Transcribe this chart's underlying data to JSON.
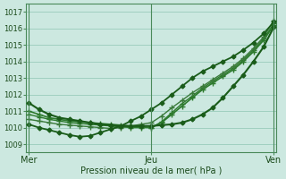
{
  "bg_color": "#cce8e0",
  "grid_color": "#99ccbb",
  "xlabel": "Pression niveau de la mer( hPa )",
  "xtick_labels": [
    "Mer",
    "Jeu",
    "Ven"
  ],
  "xtick_positions": [
    0.0,
    1.0,
    2.0
  ],
  "ylim": [
    1008.5,
    1017.5
  ],
  "xlim": [
    -0.02,
    2.02
  ],
  "ytick_positions": [
    1009,
    1010,
    1011,
    1012,
    1013,
    1014,
    1015,
    1016,
    1017
  ],
  "lines": [
    {
      "x": [
        0.0,
        0.083,
        0.167,
        0.25,
        0.333,
        0.417,
        0.5,
        0.583,
        0.667,
        0.75,
        0.833,
        0.917,
        1.0,
        1.083,
        1.167,
        1.25,
        1.333,
        1.417,
        1.5,
        1.583,
        1.667,
        1.75,
        1.833,
        1.917,
        2.0
      ],
      "y": [
        1011.5,
        1011.1,
        1010.8,
        1010.6,
        1010.5,
        1010.4,
        1010.3,
        1010.2,
        1010.15,
        1010.1,
        1010.1,
        1010.1,
        1010.1,
        1010.15,
        1010.2,
        1010.3,
        1010.5,
        1010.8,
        1011.2,
        1011.8,
        1012.5,
        1013.2,
        1014.0,
        1014.9,
        1016.1
      ],
      "marker": "D",
      "markersize": 2.5,
      "lw": 1.5,
      "color": "#1a5c1a",
      "zorder": 5
    },
    {
      "x": [
        0.0,
        0.083,
        0.167,
        0.25,
        0.333,
        0.417,
        0.5,
        0.583,
        0.667,
        0.75,
        0.833,
        0.917,
        1.0,
        1.083,
        1.167,
        1.25,
        1.333,
        1.417,
        1.5,
        1.583,
        1.667,
        1.75,
        1.833,
        1.917,
        2.0
      ],
      "y": [
        1011.0,
        1010.8,
        1010.6,
        1010.5,
        1010.4,
        1010.35,
        1010.3,
        1010.25,
        1010.2,
        1010.15,
        1010.1,
        1010.05,
        1010.0,
        1010.3,
        1010.8,
        1011.3,
        1011.8,
        1012.3,
        1012.7,
        1013.1,
        1013.5,
        1014.0,
        1014.6,
        1015.3,
        1016.2
      ],
      "marker": "+",
      "markersize": 5,
      "lw": 1.2,
      "color": "#2d7a2d",
      "zorder": 4
    },
    {
      "x": [
        0.0,
        0.083,
        0.167,
        0.25,
        0.333,
        0.417,
        0.5,
        0.583,
        0.667,
        0.75,
        0.833,
        0.917,
        1.0,
        1.083,
        1.167,
        1.25,
        1.333,
        1.417,
        1.5,
        1.583,
        1.667,
        1.75,
        1.833,
        1.917,
        2.0
      ],
      "y": [
        1010.8,
        1010.65,
        1010.5,
        1010.4,
        1010.3,
        1010.25,
        1010.2,
        1010.15,
        1010.1,
        1010.05,
        1010.0,
        1010.0,
        1010.0,
        1010.35,
        1010.9,
        1011.45,
        1011.9,
        1012.4,
        1012.8,
        1013.2,
        1013.6,
        1014.1,
        1014.7,
        1015.4,
        1016.3
      ],
      "marker": "+",
      "markersize": 5,
      "lw": 1.0,
      "color": "#2d7a2d",
      "zorder": 4
    },
    {
      "x": [
        0.0,
        0.083,
        0.167,
        0.25,
        0.333,
        0.417,
        0.5,
        0.583,
        0.667,
        0.75,
        0.833,
        0.917,
        1.0,
        1.083,
        1.167,
        1.25,
        1.333,
        1.417,
        1.5,
        1.583,
        1.667,
        1.75,
        1.833,
        1.917,
        2.0
      ],
      "y": [
        1010.5,
        1010.4,
        1010.3,
        1010.2,
        1010.15,
        1010.1,
        1010.05,
        1010.0,
        1009.95,
        1010.0,
        1010.1,
        1010.2,
        1010.3,
        1010.7,
        1011.2,
        1011.65,
        1012.1,
        1012.5,
        1012.9,
        1013.3,
        1013.7,
        1014.2,
        1014.8,
        1015.5,
        1016.5
      ],
      "marker": "+",
      "markersize": 5,
      "lw": 1.0,
      "color": "#3a7a3a",
      "zorder": 4
    },
    {
      "x": [
        0.0,
        0.083,
        0.167,
        0.25,
        0.333,
        0.417,
        0.5,
        0.583,
        0.667,
        0.75,
        0.833,
        0.917,
        1.0,
        1.083,
        1.167,
        1.25,
        1.333,
        1.417,
        1.5,
        1.583,
        1.667,
        1.75,
        1.833,
        1.917,
        2.0
      ],
      "y": [
        1010.2,
        1010.0,
        1009.85,
        1009.7,
        1009.55,
        1009.45,
        1009.5,
        1009.7,
        1009.9,
        1010.1,
        1010.4,
        1010.7,
        1011.1,
        1011.5,
        1012.0,
        1012.5,
        1013.0,
        1013.4,
        1013.7,
        1014.0,
        1014.3,
        1014.7,
        1015.15,
        1015.7,
        1016.4
      ],
      "marker": "D",
      "markersize": 2.5,
      "lw": 1.3,
      "color": "#1a5c1a",
      "zorder": 5
    }
  ],
  "vlines": [
    0.0,
    1.0,
    2.0
  ],
  "vline_color": "#4a8a5a",
  "vline_lw": 0.8,
  "spine_color": "#4a8a5a"
}
